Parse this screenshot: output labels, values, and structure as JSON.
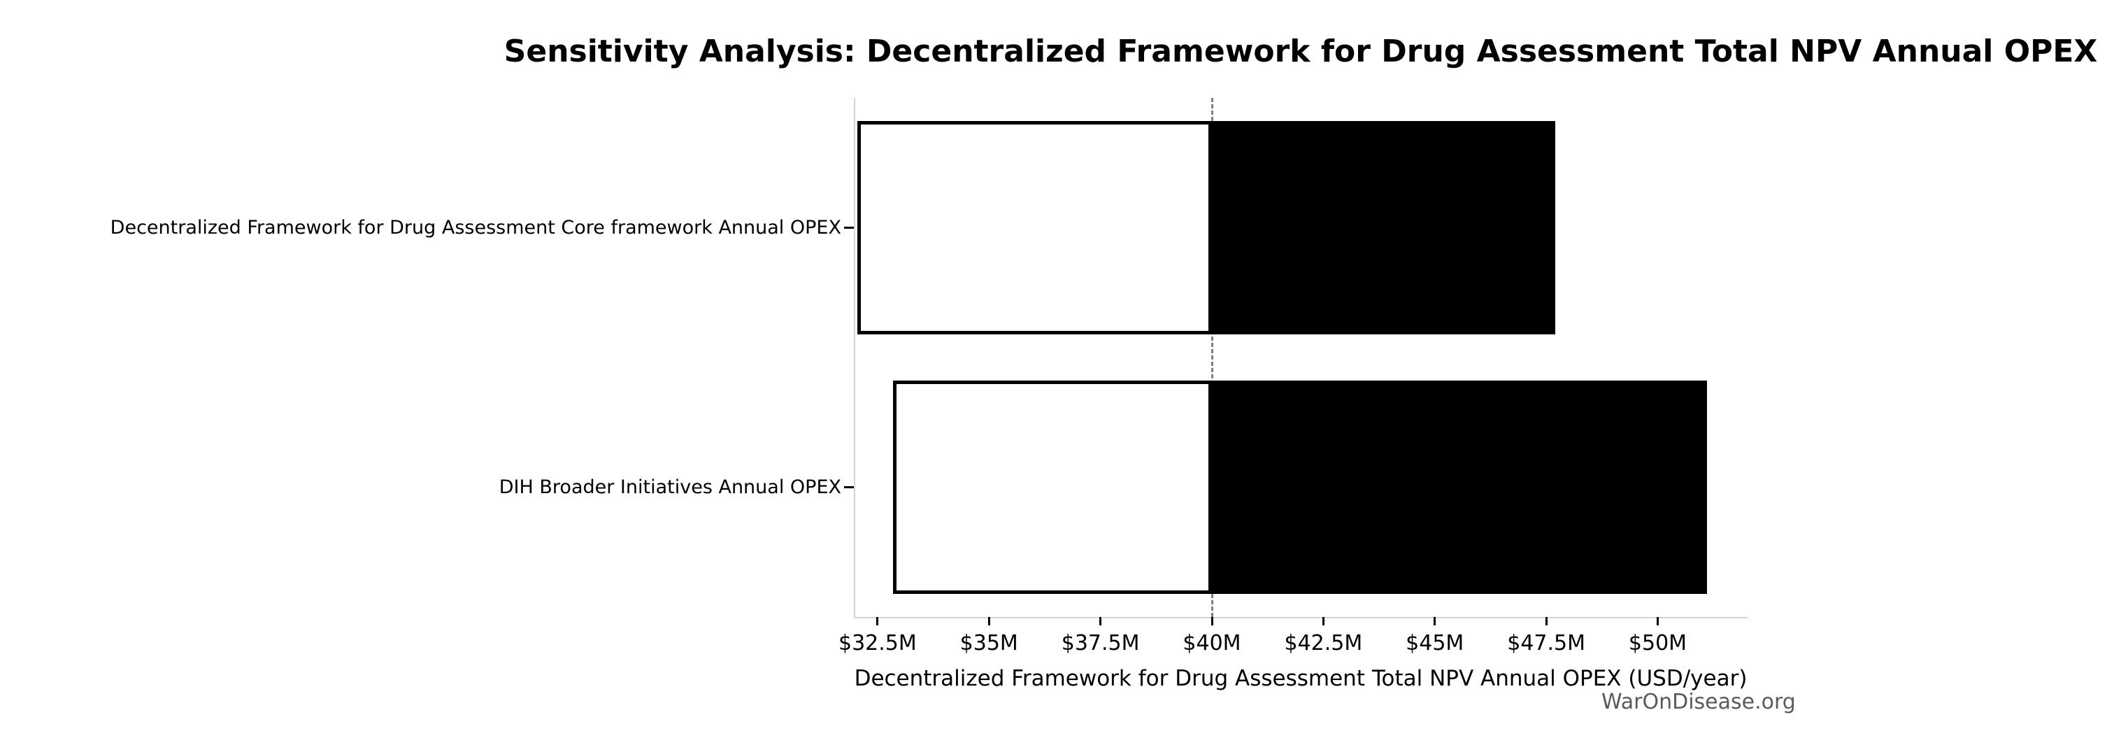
{
  "figure": {
    "watermark": "WarOnDisease.org"
  },
  "chart_data": {
    "type": "bar",
    "subtype": "tornado-sensitivity",
    "orientation": "horizontal",
    "title": "Sensitivity Analysis: Decentralized Framework for Drug Assessment Total NPV Annual OPEX",
    "xlabel": "Decentralized Framework for Drug Assessment Total NPV Annual OPEX (USD/year)",
    "unit": "USD millions per year",
    "categories": [
      "Decentralized Framework for Drug Assessment Core framework Annual OPEX",
      "DIH Broader Initiatives Annual OPEX"
    ],
    "baseline_value": 40,
    "series": [
      {
        "name": "low case (white segment: low value to baseline)",
        "values": [
          32.05,
          32.85
        ]
      },
      {
        "name": "high case (black segment: baseline to high value)",
        "values": [
          47.7,
          51.1
        ]
      }
    ],
    "xlim": [
      32,
      52
    ],
    "xticks": [
      {
        "value": 32.5,
        "label": "$32.5M"
      },
      {
        "value": 35,
        "label": "$35M"
      },
      {
        "value": 37.5,
        "label": "$37.5M"
      },
      {
        "value": 40,
        "label": "$40M"
      },
      {
        "value": 42.5,
        "label": "$42.5M"
      },
      {
        "value": 45,
        "label": "$45M"
      },
      {
        "value": 47.5,
        "label": "$47.5M"
      },
      {
        "value": 50,
        "label": "$50M"
      }
    ],
    "grid": false,
    "legend": "none",
    "colors": {
      "low_segment_fill": "#ffffff",
      "high_segment_fill": "#000000",
      "bar_border": "#000000",
      "baseline_line": "#7f7f7f",
      "axis_spine": "#d4d4d4",
      "tick_mark": "#000000",
      "text": "#000000",
      "watermark_text": "#5a5a5a",
      "background": "#ffffff"
    }
  }
}
